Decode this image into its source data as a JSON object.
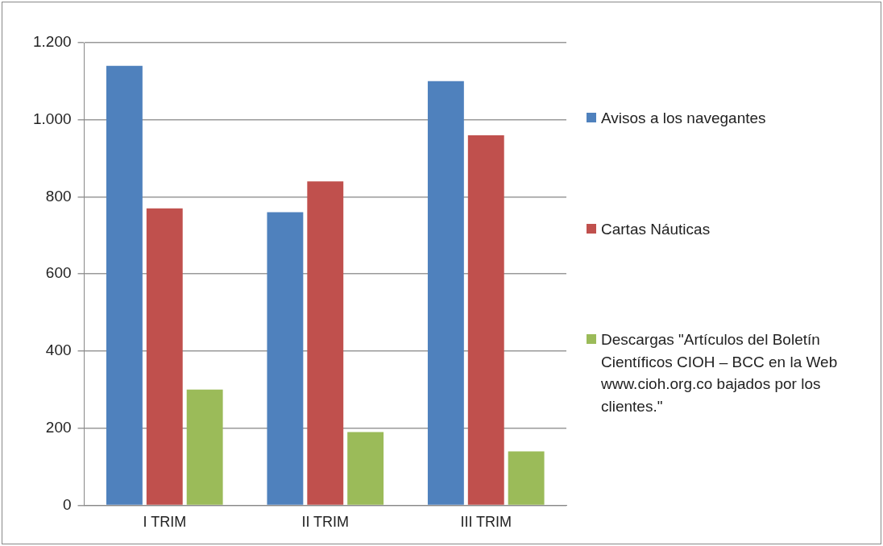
{
  "chart_data": {
    "type": "bar",
    "categories": [
      "I TRIM",
      "II TRIM",
      "III TRIM"
    ],
    "series": [
      {
        "name": "Avisos a los navegantes",
        "color": "#4f81bd",
        "values": [
          1140,
          760,
          1100
        ]
      },
      {
        "name": "Cartas Náuticas",
        "color": "#c0504d",
        "values": [
          770,
          840,
          960
        ]
      },
      {
        "name": "Descargas \"Artículos del Boletín Científicos CIOH – BCC en la Web www.cioh.org.co bajados por los clientes.\"",
        "color": "#9bbb59",
        "values": [
          300,
          190,
          140
        ]
      }
    ],
    "ylim": [
      0,
      1200
    ],
    "yticks": [
      0,
      {
        "value": 200,
        "label": "200"
      },
      {
        "value": 400,
        "label": "400"
      },
      {
        "value": 600,
        "label": "600"
      },
      {
        "value": 800,
        "label": "800"
      },
      {
        "value": 1000,
        "label": "1.000"
      },
      {
        "value": 1200,
        "label": "1.200"
      }
    ],
    "grid": "y",
    "legend": "right"
  }
}
